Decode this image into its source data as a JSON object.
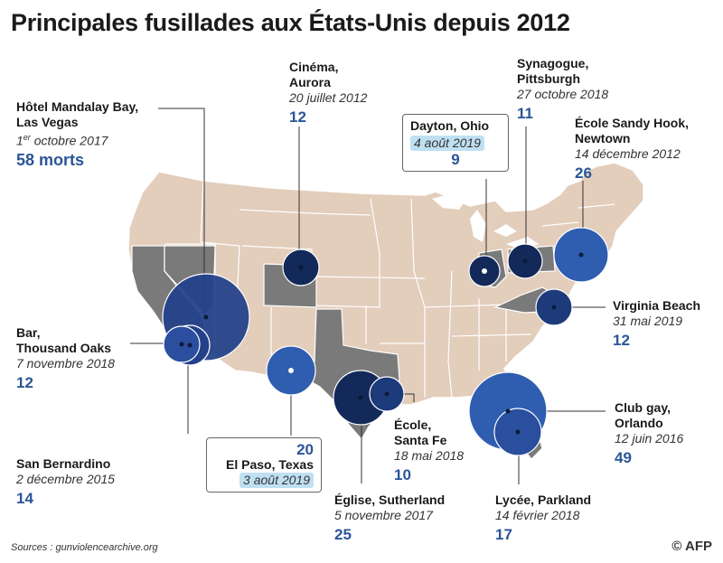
{
  "title": "Principales fusillades aux États-Unis depuis 2012",
  "source": "Sources : gunviolencearchive.org",
  "logo": "© AFP",
  "colors": {
    "land": "#e3cdbb",
    "highlighted_state": "#7a7a7a",
    "circle_dark": "#13295a",
    "circle_mid": "#22418a",
    "circle_light": "#2f5db0",
    "number": "#2a5597",
    "highlight_bg": "#bfe0f2"
  },
  "events": {
    "aurora": {
      "place": "Cinéma,",
      "place2": "Aurora",
      "date": "20 juillet 2012",
      "deaths": "12"
    },
    "pittsburgh": {
      "place": "Synagogue,",
      "place2": "Pittsburgh",
      "date": "27 octobre 2018",
      "deaths": "11"
    },
    "lasvegas": {
      "place": "Hôtel Mandalay Bay,",
      "place2": "Las Vegas",
      "date_num": "1",
      "date_sup": "er",
      "date_rest": " octobre 2017",
      "deaths": "58 morts"
    },
    "dayton": {
      "place": "Dayton, Ohio",
      "date": "4 août 2019",
      "deaths": "9"
    },
    "sandyhook": {
      "place": "École Sandy Hook,",
      "place2": "Newtown",
      "date": "14 décembre 2012",
      "deaths": "26"
    },
    "thousandoaks": {
      "place": "Bar,",
      "place2": "Thousand Oaks",
      "date": "7 novembre 2018",
      "deaths": "12"
    },
    "virginiabeach": {
      "place": "Virginia Beach",
      "date": "31 mai 2019",
      "deaths": "12"
    },
    "santafe": {
      "place": "École,",
      "place2": "Santa Fe",
      "date": "18 mai 2018",
      "deaths": "10"
    },
    "orlando": {
      "place": "Club gay,",
      "place2": "Orlando",
      "date": "12 juin 2016",
      "deaths": "49"
    },
    "sanbernardino": {
      "place": "San Bernardino",
      "date": "2 décembre 2015",
      "deaths": "14"
    },
    "elpaso": {
      "deaths": "20",
      "place": "El Paso, Texas",
      "date": "3 août 2019"
    },
    "sutherland": {
      "place": "Église, Sutherland",
      "date": "5 novembre 2017",
      "deaths": "25"
    },
    "parkland": {
      "place": "Lycée, Parkland",
      "date": "14 février 2018",
      "deaths": "17"
    }
  }
}
